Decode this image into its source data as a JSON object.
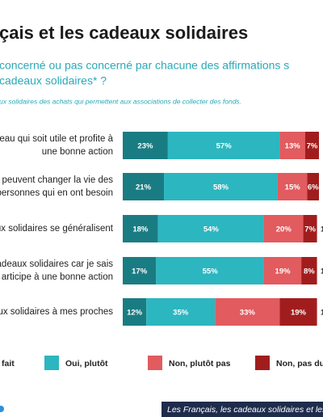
{
  "chart_data": {
    "type": "stacked-bar-horizontal",
    "title": "çais et les cadeaux solidaires",
    "subtitle": [
      "concerné ou pas concerné par chacune des affirmations s",
      "cadeaux solidaires* ?"
    ],
    "note": "ux solidaires des achats qui permettent aux associations de collecter des fonds.",
    "categories": [
      [
        "eau qui soit utile et profite à",
        "une bonne action"
      ],
      [
        "peuvent changer la vie des",
        "personnes qui en ont besoin"
      ],
      [
        "ux solidaires se généralisent"
      ],
      [
        "cadeaux solidaires car je sais",
        "articipe à une bonne action"
      ],
      [
        "ux solidaires à mes proches"
      ]
    ],
    "xlim": [
      0,
      100
    ],
    "series": [
      {
        "name": "fait",
        "color": "#1a7c83",
        "values": [
          23,
          21,
          18,
          17,
          12
        ],
        "value_labels": [
          "23%",
          "21%",
          "18%",
          "17%",
          "12%"
        ]
      },
      {
        "name": "Oui, plutôt",
        "color": "#2cb6c0",
        "values": [
          57,
          58,
          54,
          55,
          35
        ],
        "value_labels": [
          "57%",
          "58%",
          "54%",
          "55%",
          "35%"
        ]
      },
      {
        "name": "Non, plutôt pas",
        "color": "#e15b5f",
        "values": [
          13,
          15,
          20,
          19,
          33
        ],
        "value_labels": [
          "13%",
          "15%",
          "20%",
          "19%",
          "33%"
        ]
      },
      {
        "name": "Non, pas du",
        "color": "#a11d1d",
        "values": [
          7,
          6,
          7,
          8,
          19
        ],
        "value_labels": [
          "7%",
          "6%",
          "7%",
          "8%",
          "19%"
        ]
      },
      {
        "values": [
          null,
          null,
          1,
          1,
          1
        ],
        "value_labels": [
          null,
          null,
          "1",
          "1",
          "1"
        ]
      }
    ],
    "footer": "Les Français, les cadeaux solidaires et les"
  }
}
